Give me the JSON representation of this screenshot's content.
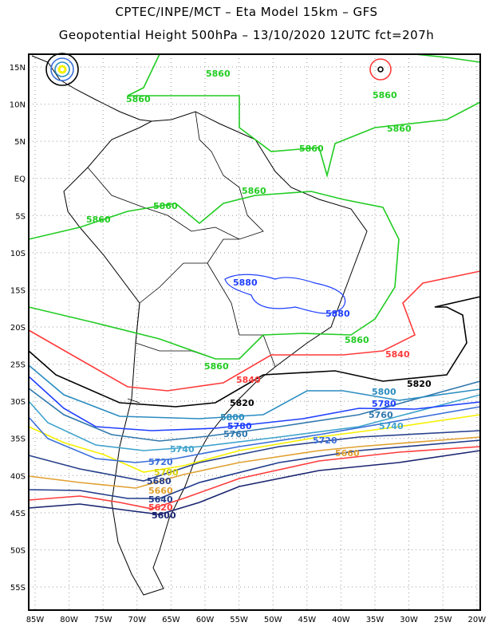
{
  "header": {
    "title_line1": "CPTEC/INPE/MCT –  Eta Model 15km – GFS",
    "title_line2": "Geopotential Height 500hPa – 13/10/2020 12UTC fct=207h"
  },
  "axes": {
    "lat_ticks": [
      "15N",
      "10N",
      "5N",
      "EQ",
      "5S",
      "10S",
      "15S",
      "20S",
      "25S",
      "30S",
      "35S",
      "40S",
      "45S",
      "50S",
      "55S"
    ],
    "lon_ticks": [
      "85W",
      "80W",
      "75W",
      "70W",
      "65W",
      "60W",
      "55W",
      "50W",
      "45W",
      "40W",
      "35W",
      "30W",
      "25W",
      "20W"
    ]
  },
  "chart_data": {
    "type": "contour",
    "variable": "Geopotential Height 500hPa",
    "units": "gpm",
    "levels": [
      {
        "value": 5600,
        "color": "#1a2470"
      },
      {
        "value": 5620,
        "color": "#ff3b3b"
      },
      {
        "value": 5640,
        "color": "#1f3a8a"
      },
      {
        "value": 5660,
        "color": "#e0a030"
      },
      {
        "value": 5680,
        "color": "#27408b"
      },
      {
        "value": 5700,
        "color": "#f5f000"
      },
      {
        "value": 5720,
        "color": "#3a6fd8"
      },
      {
        "value": 5740,
        "color": "#3fa3cc"
      },
      {
        "value": 5760,
        "color": "#2f78ac"
      },
      {
        "value": 5780,
        "color": "#1f3fff"
      },
      {
        "value": 5800,
        "color": "#2a8cc0"
      },
      {
        "value": 5820,
        "color": "#000000"
      },
      {
        "value": 5840,
        "color": "#ff3b3b"
      },
      {
        "value": 5860,
        "color": "#22cc22"
      },
      {
        "value": 5880,
        "color": "#1f3fff"
      }
    ],
    "labels": {
      "l5860a": "5860",
      "l5860b": "5860",
      "l5860c": "5860",
      "l5860d": "5860",
      "l5860e": "5860",
      "l5860f": "5860",
      "l5860g": "5860",
      "l5860h": "5860",
      "l5860i": "5860",
      "l5860j": "5860",
      "l5880a": "5880",
      "l5880b": "5880",
      "l5840a": "5840",
      "l5840b": "5840",
      "l5820a": "5820",
      "l5820b": "5820",
      "l5800a": "5800",
      "l5800b": "5800",
      "l5780a": "5780",
      "l5780b": "5780",
      "l5760a": "5760",
      "l5760b": "5760",
      "l5740a": "5740",
      "l5740b": "5740",
      "l5720a": "5720",
      "l5720b": "5720",
      "l5700": "5700",
      "l5680": "5680",
      "l5660a": "5660",
      "l5660b": "5660",
      "l5640": "5640",
      "l5620": "5620",
      "l5600": "5600"
    },
    "xlim": [
      "86W",
      "20W"
    ],
    "ylim": [
      "57S",
      "17N"
    ],
    "grid": true
  }
}
